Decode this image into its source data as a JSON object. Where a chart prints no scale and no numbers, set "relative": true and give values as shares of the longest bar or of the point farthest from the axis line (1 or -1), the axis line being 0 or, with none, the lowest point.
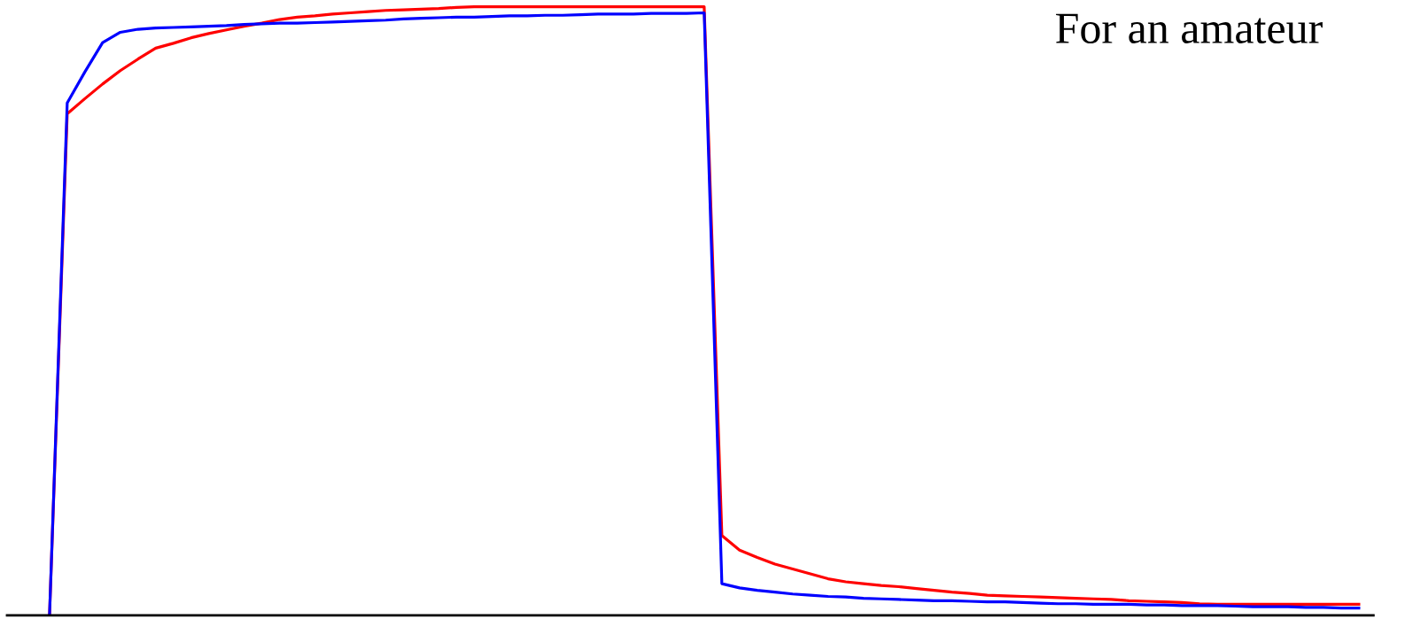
{
  "chart_data": {
    "type": "line",
    "title": "For an amateur",
    "relative": true,
    "legend": false,
    "marker": "none",
    "line_style": "solid",
    "categories": [
      null,
      null,
      null,
      null,
      null,
      null,
      null,
      null,
      null,
      null,
      null,
      null,
      null,
      null,
      null,
      null,
      null,
      null,
      null,
      null,
      null,
      null,
      null,
      null,
      null,
      null,
      null,
      null,
      null,
      null,
      null,
      null,
      null,
      null,
      null,
      null,
      null,
      null,
      null,
      null,
      null,
      null,
      null,
      null,
      null,
      null,
      null,
      null,
      null,
      null,
      null,
      null,
      null,
      null,
      null,
      null,
      null,
      null,
      null,
      null,
      null,
      null,
      null,
      null,
      null,
      null,
      null,
      null,
      null,
      null,
      null,
      null,
      null,
      null,
      null
    ],
    "series": [
      {
        "color": "#ff0000",
        "values": [
          0,
          0.824,
          0.849,
          0.873,
          0.895,
          0.914,
          0.932,
          0.94,
          0.949,
          0.956,
          0.962,
          0.968,
          0.973,
          0.979,
          0.983,
          0.985,
          0.988,
          0.99,
          0.992,
          0.994,
          0.995,
          0.996,
          0.997,
          0.999,
          1,
          1,
          1,
          1,
          1,
          1,
          1,
          1,
          1,
          1,
          1,
          1,
          1,
          1,
          0.131,
          0.107,
          0.095,
          0.084,
          0.076,
          0.068,
          0.06,
          0.055,
          0.052,
          0.049,
          0.047,
          0.044,
          0.041,
          0.038,
          0.036,
          0.033,
          0.032,
          0.031,
          0.03,
          0.029,
          0.028,
          0.027,
          0.026,
          0.024,
          0.023,
          0.022,
          0.021,
          0.019,
          0.018,
          0.018,
          0.018,
          0.018,
          0.018,
          0.018,
          0.018,
          0.018,
          0.018
        ]
      },
      {
        "color": "#0000ff",
        "values": [
          0,
          0.842,
          0.893,
          0.941,
          0.958,
          0.963,
          0.965,
          0.966,
          0.967,
          0.968,
          0.969,
          0.971,
          0.972,
          0.973,
          0.973,
          0.974,
          0.975,
          0.976,
          0.977,
          0.978,
          0.98,
          0.981,
          0.982,
          0.983,
          0.983,
          0.984,
          0.985,
          0.985,
          0.986,
          0.986,
          0.987,
          0.988,
          0.988,
          0.988,
          0.989,
          0.989,
          0.989,
          0.99,
          0.052,
          0.045,
          0.041,
          0.038,
          0.035,
          0.033,
          0.031,
          0.03,
          0.028,
          0.027,
          0.026,
          0.025,
          0.024,
          0.024,
          0.023,
          0.022,
          0.022,
          0.021,
          0.02,
          0.019,
          0.019,
          0.018,
          0.018,
          0.018,
          0.017,
          0.017,
          0.016,
          0.016,
          0.016,
          0.015,
          0.014,
          0.014,
          0.014,
          0.013,
          0.013,
          0.012,
          0.012
        ]
      }
    ]
  }
}
